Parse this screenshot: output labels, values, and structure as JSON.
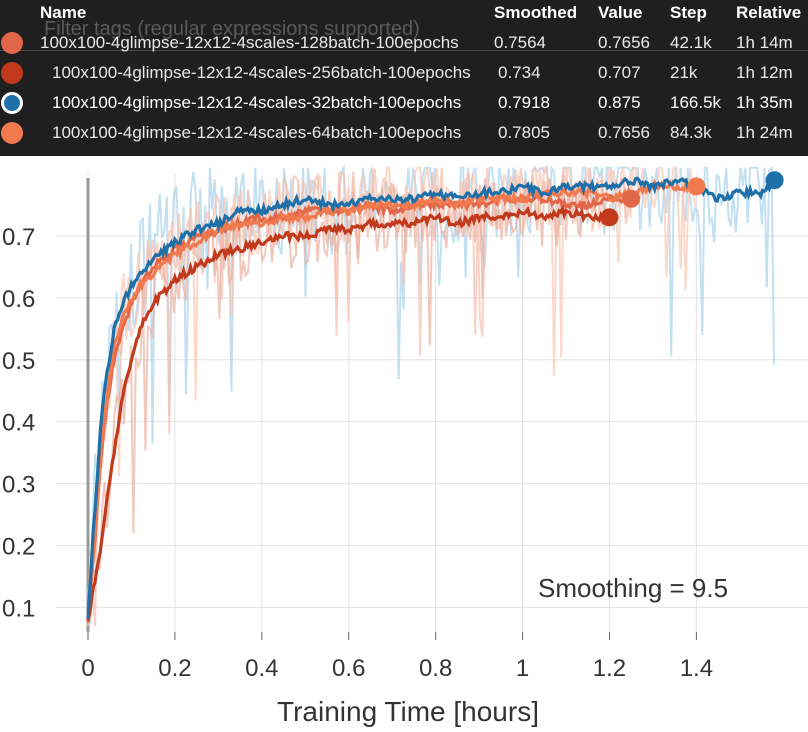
{
  "tooltip": {
    "filter_placeholder": "Filter tags (regular expressions supported)",
    "headers": {
      "name": "Name",
      "smoothed": "Smoothed",
      "value": "Value",
      "step": "Step",
      "relative": "Relative"
    },
    "rows": [
      {
        "name": "100x100-4glimpse-12x12-4scales-128batch-100epochs",
        "smoothed": "0.7564",
        "value": "0.7656",
        "step": "42.1k",
        "relative": "1h 14m",
        "color": "#e2674a",
        "selected": false
      },
      {
        "name": "100x100-4glimpse-12x12-4scales-256batch-100epochs",
        "smoothed": "0.734",
        "value": "0.707",
        "step": "21k",
        "relative": "1h 12m",
        "color": "#c23a1c",
        "selected": false
      },
      {
        "name": "100x100-4glimpse-12x12-4scales-32batch-100epochs",
        "smoothed": "0.7918",
        "value": "0.875",
        "step": "166.5k",
        "relative": "1h 35m",
        "color": "#1f6fa8",
        "selected": true
      },
      {
        "name": "100x100-4glimpse-12x12-4scales-64batch-100epochs",
        "smoothed": "0.7805",
        "value": "0.7656",
        "step": "84.3k",
        "relative": "1h 24m",
        "color": "#f07a4e",
        "selected": false
      }
    ]
  },
  "chart_data": {
    "type": "line",
    "title": "",
    "xlabel": "Training Time [hours]",
    "ylabel": "",
    "xlim": [
      0,
      1.62
    ],
    "ylim": [
      0.07,
      0.8
    ],
    "x_ticks": [
      0,
      0.2,
      0.4,
      0.6,
      0.8,
      1,
      1.2,
      1.4
    ],
    "x_tick_labels": [
      "0",
      "0.2",
      "0.4",
      "0.6",
      "0.8",
      "1",
      "1.2",
      "1.4"
    ],
    "y_ticks": [
      0.1,
      0.2,
      0.3,
      0.4,
      0.5,
      0.6,
      0.7
    ],
    "y_tick_labels": [
      "0.1",
      "0.2",
      "0.3",
      "0.4",
      "0.5",
      "0.6",
      "0.7"
    ],
    "annotation": "Smoothing = 9.5",
    "grid": true,
    "series": [
      {
        "name": "100x100-4glimpse-12x12-4scales-32batch-100epochs",
        "color": "#1f6fa8",
        "raw_color": "#a9d3ec",
        "x": [
          0,
          0.01,
          0.02,
          0.03,
          0.04,
          0.05,
          0.06,
          0.08,
          0.1,
          0.12,
          0.15,
          0.2,
          0.25,
          0.3,
          0.35,
          0.4,
          0.45,
          0.5,
          0.55,
          0.6,
          0.65,
          0.7,
          0.75,
          0.8,
          0.85,
          0.9,
          0.95,
          1.0,
          1.05,
          1.1,
          1.15,
          1.2,
          1.25,
          1.3,
          1.35,
          1.4,
          1.45,
          1.5,
          1.55,
          1.58
        ],
        "y": [
          0.08,
          0.2,
          0.3,
          0.4,
          0.46,
          0.5,
          0.55,
          0.59,
          0.62,
          0.64,
          0.66,
          0.69,
          0.71,
          0.72,
          0.74,
          0.74,
          0.75,
          0.76,
          0.75,
          0.75,
          0.76,
          0.76,
          0.76,
          0.77,
          0.76,
          0.77,
          0.77,
          0.78,
          0.77,
          0.78,
          0.78,
          0.78,
          0.79,
          0.78,
          0.79,
          0.78,
          0.76,
          0.77,
          0.77,
          0.79
        ]
      },
      {
        "name": "100x100-4glimpse-12x12-4scales-64batch-100epochs",
        "color": "#f07a4e",
        "raw_color": "#f9c7b3",
        "x": [
          0,
          0.01,
          0.02,
          0.03,
          0.04,
          0.05,
          0.06,
          0.08,
          0.1,
          0.12,
          0.15,
          0.2,
          0.25,
          0.3,
          0.35,
          0.4,
          0.45,
          0.5,
          0.55,
          0.6,
          0.65,
          0.7,
          0.75,
          0.8,
          0.85,
          0.9,
          0.95,
          1.0,
          1.05,
          1.1,
          1.15,
          1.2,
          1.25,
          1.3,
          1.35,
          1.4
        ],
        "y": [
          0.08,
          0.17,
          0.26,
          0.35,
          0.42,
          0.47,
          0.52,
          0.57,
          0.6,
          0.62,
          0.64,
          0.67,
          0.69,
          0.71,
          0.72,
          0.72,
          0.73,
          0.73,
          0.74,
          0.74,
          0.75,
          0.75,
          0.75,
          0.76,
          0.75,
          0.76,
          0.76,
          0.76,
          0.77,
          0.77,
          0.77,
          0.76,
          0.77,
          0.78,
          0.78,
          0.78
        ]
      },
      {
        "name": "100x100-4glimpse-12x12-4scales-128batch-100epochs",
        "color": "#e2674a",
        "raw_color": "#f5bfae",
        "x": [
          0,
          0.01,
          0.02,
          0.03,
          0.04,
          0.05,
          0.06,
          0.08,
          0.1,
          0.12,
          0.15,
          0.2,
          0.25,
          0.3,
          0.35,
          0.4,
          0.45,
          0.5,
          0.55,
          0.6,
          0.65,
          0.7,
          0.75,
          0.8,
          0.85,
          0.9,
          0.95,
          1.0,
          1.05,
          1.1,
          1.15,
          1.2,
          1.25
        ],
        "y": [
          0.08,
          0.16,
          0.25,
          0.34,
          0.41,
          0.46,
          0.5,
          0.55,
          0.59,
          0.62,
          0.65,
          0.68,
          0.7,
          0.71,
          0.72,
          0.73,
          0.73,
          0.74,
          0.74,
          0.74,
          0.75,
          0.74,
          0.75,
          0.75,
          0.75,
          0.75,
          0.76,
          0.76,
          0.76,
          0.75,
          0.75,
          0.76,
          0.76
        ]
      },
      {
        "name": "100x100-4glimpse-12x12-4scales-256batch-100epochs",
        "color": "#c23a1c",
        "raw_color": "#eab1a1",
        "x": [
          0,
          0.01,
          0.02,
          0.03,
          0.04,
          0.05,
          0.06,
          0.07,
          0.08,
          0.1,
          0.12,
          0.15,
          0.2,
          0.25,
          0.3,
          0.35,
          0.4,
          0.45,
          0.5,
          0.55,
          0.6,
          0.65,
          0.7,
          0.75,
          0.8,
          0.85,
          0.9,
          0.95,
          1.0,
          1.05,
          1.1,
          1.15,
          1.2
        ],
        "y": [
          0.08,
          0.12,
          0.16,
          0.2,
          0.26,
          0.3,
          0.35,
          0.4,
          0.44,
          0.5,
          0.55,
          0.59,
          0.63,
          0.65,
          0.67,
          0.68,
          0.69,
          0.7,
          0.7,
          0.71,
          0.71,
          0.72,
          0.72,
          0.72,
          0.73,
          0.72,
          0.73,
          0.73,
          0.74,
          0.73,
          0.74,
          0.73,
          0.73
        ]
      }
    ]
  }
}
